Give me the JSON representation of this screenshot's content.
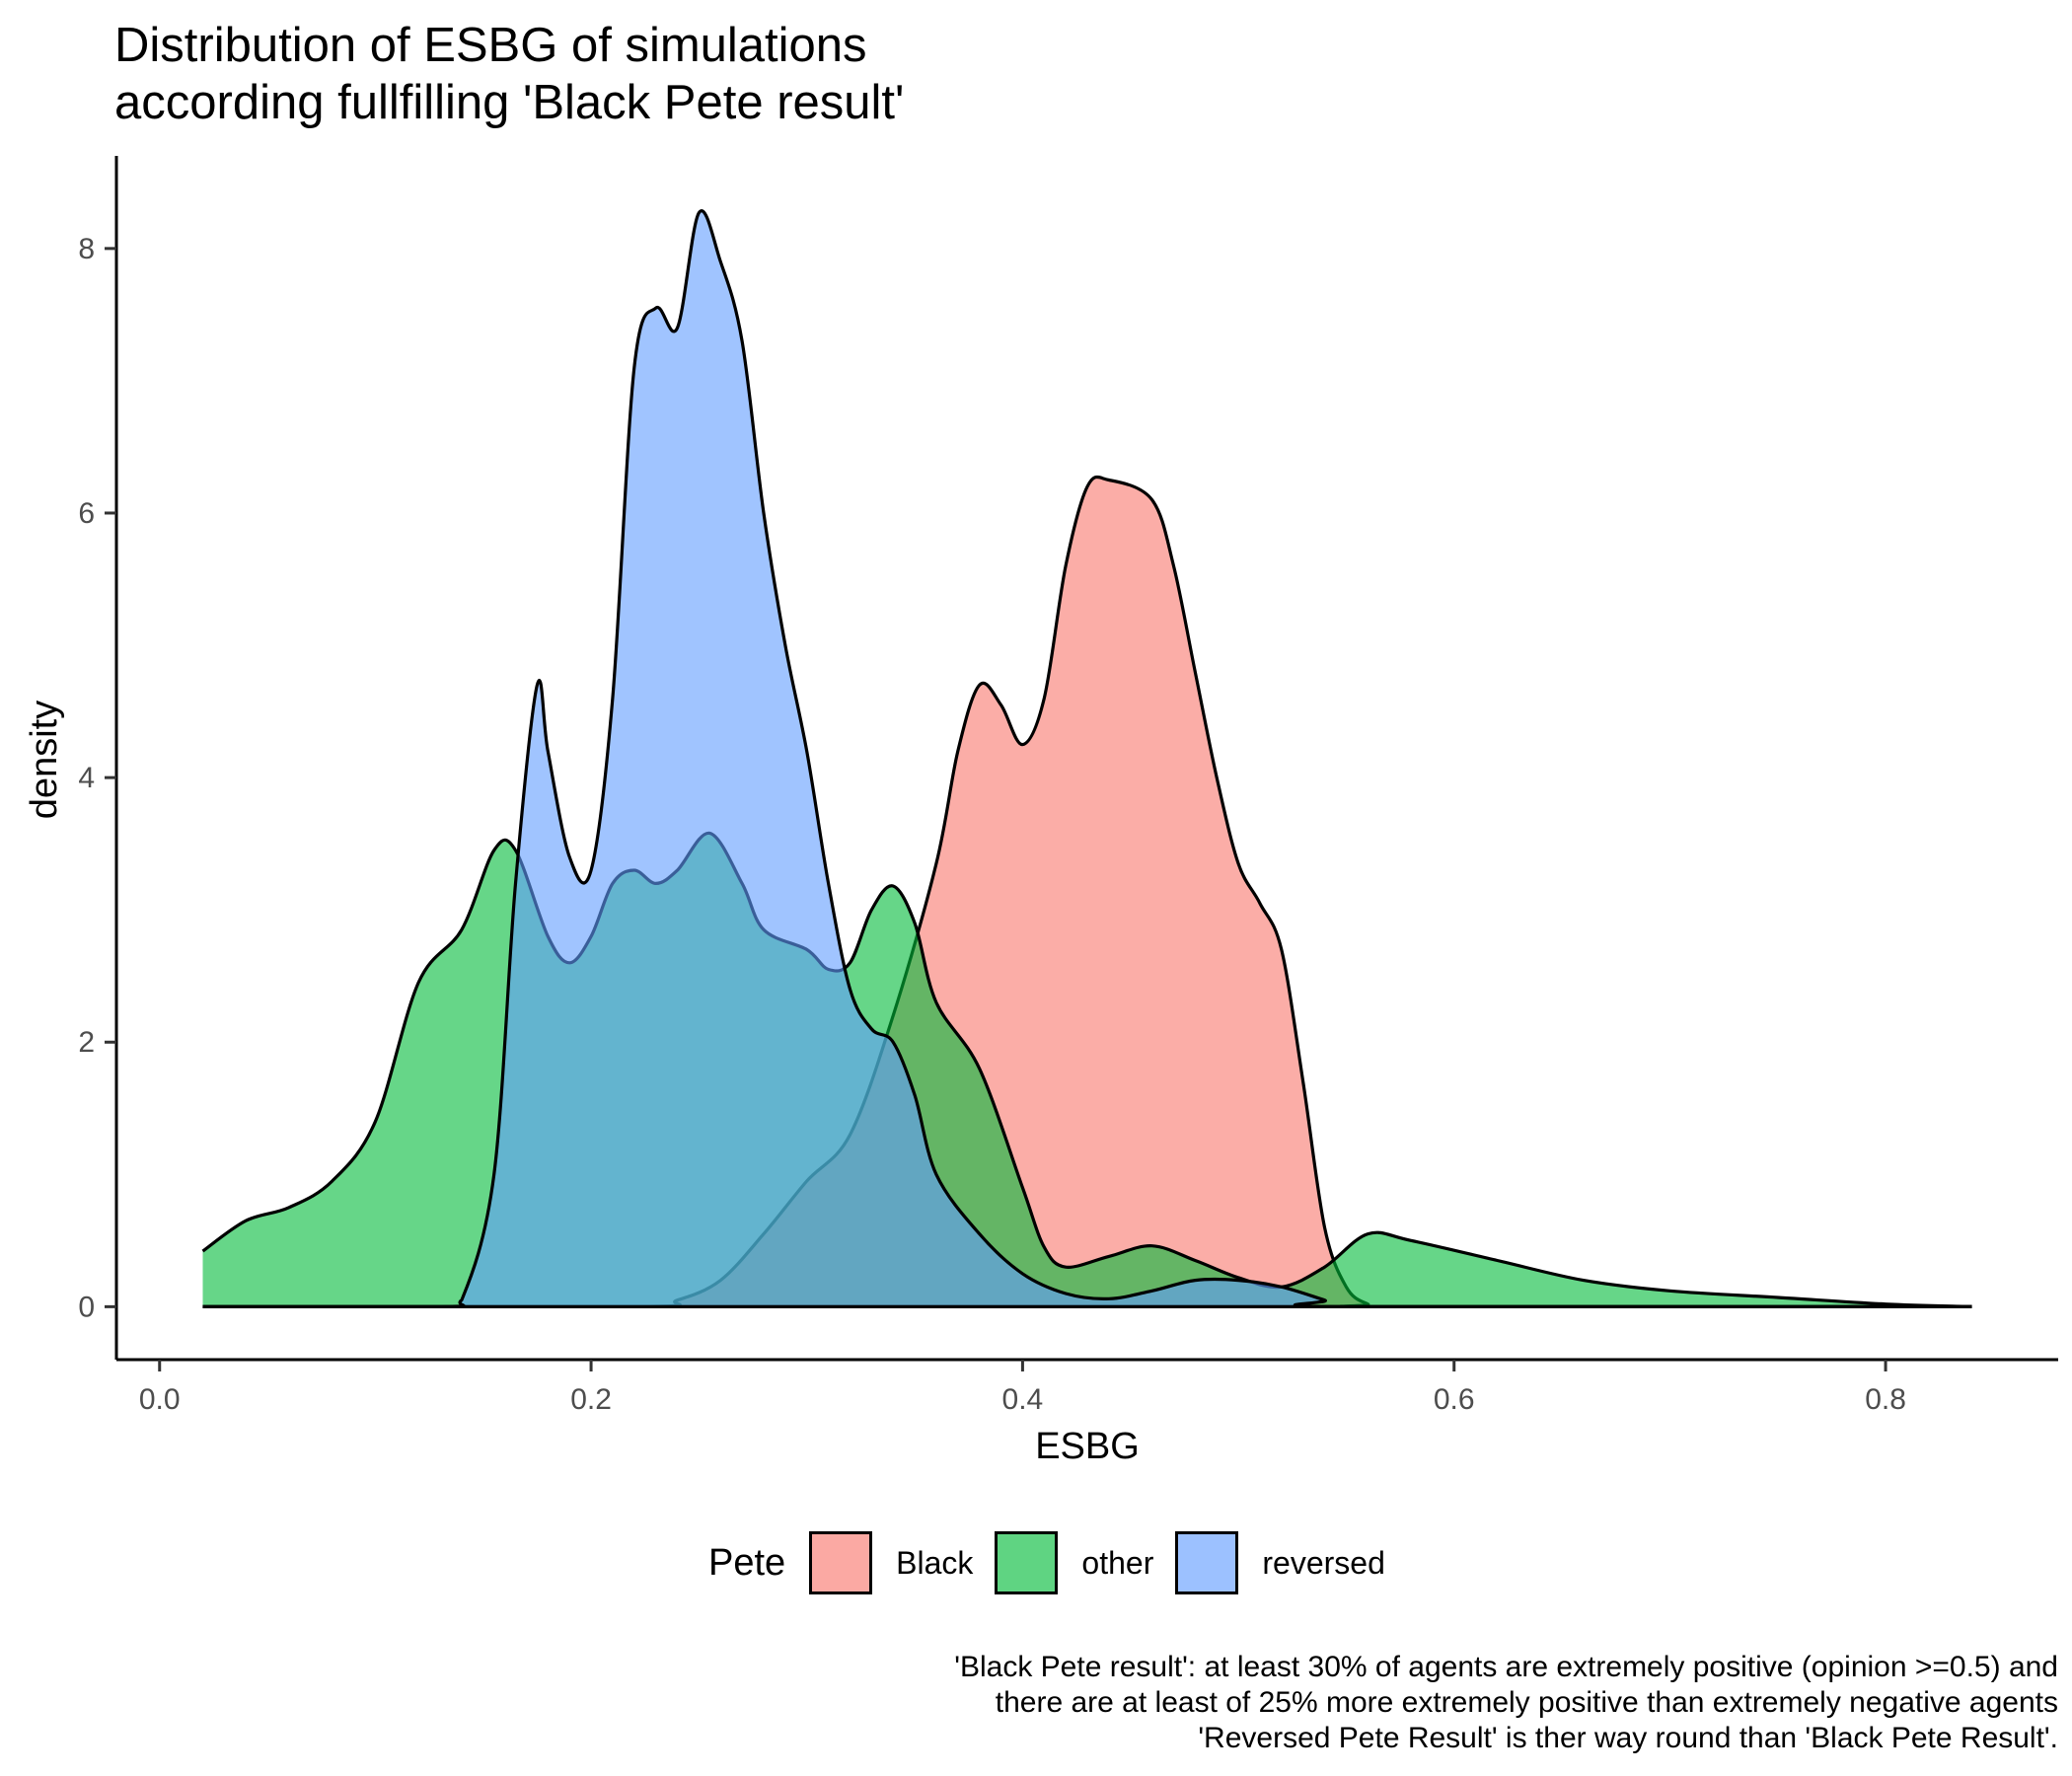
{
  "chart_data": {
    "type": "area",
    "title_lines": [
      "Distribution of ESBG of simulations",
      "according fullfilling 'Black Pete result'"
    ],
    "xlabel": "ESBG",
    "ylabel": "density",
    "xlim": [
      -0.02,
      0.88
    ],
    "ylim": [
      -0.4,
      8.7
    ],
    "x_ticks": [
      0.0,
      0.2,
      0.4,
      0.6,
      0.8
    ],
    "x_tick_labels": [
      "0.0",
      "0.2",
      "0.4",
      "0.6",
      "0.8"
    ],
    "y_ticks": [
      0,
      2,
      4,
      6,
      8
    ],
    "y_tick_labels": [
      "0",
      "2",
      "4",
      "6",
      "8"
    ],
    "grid": false,
    "legend": {
      "title": "Pete",
      "position": "bottom"
    },
    "series": [
      {
        "name": "Black",
        "color": "#F8766D",
        "points": [
          [
            0.02,
            0
          ],
          [
            0.22,
            0
          ],
          [
            0.24,
            0.05
          ],
          [
            0.26,
            0.2
          ],
          [
            0.28,
            0.55
          ],
          [
            0.3,
            0.95
          ],
          [
            0.32,
            1.3
          ],
          [
            0.34,
            2.2
          ],
          [
            0.36,
            3.35
          ],
          [
            0.37,
            4.2
          ],
          [
            0.38,
            4.7
          ],
          [
            0.39,
            4.55
          ],
          [
            0.4,
            4.25
          ],
          [
            0.41,
            4.6
          ],
          [
            0.42,
            5.6
          ],
          [
            0.43,
            6.2
          ],
          [
            0.44,
            6.25
          ],
          [
            0.46,
            6.1
          ],
          [
            0.47,
            5.6
          ],
          [
            0.48,
            4.8
          ],
          [
            0.49,
            4.0
          ],
          [
            0.5,
            3.35
          ],
          [
            0.51,
            3.05
          ],
          [
            0.52,
            2.7
          ],
          [
            0.53,
            1.7
          ],
          [
            0.54,
            0.6
          ],
          [
            0.55,
            0.15
          ],
          [
            0.56,
            0.02
          ],
          [
            0.57,
            0
          ],
          [
            0.84,
            0
          ]
        ]
      },
      {
        "name": "other",
        "color": "#00BA38",
        "points": [
          [
            0.02,
            0.42
          ],
          [
            0.04,
            0.65
          ],
          [
            0.06,
            0.75
          ],
          [
            0.08,
            0.95
          ],
          [
            0.1,
            1.4
          ],
          [
            0.12,
            2.45
          ],
          [
            0.14,
            2.85
          ],
          [
            0.155,
            3.45
          ],
          [
            0.165,
            3.45
          ],
          [
            0.18,
            2.8
          ],
          [
            0.19,
            2.6
          ],
          [
            0.2,
            2.8
          ],
          [
            0.21,
            3.2
          ],
          [
            0.22,
            3.3
          ],
          [
            0.23,
            3.2
          ],
          [
            0.24,
            3.3
          ],
          [
            0.255,
            3.58
          ],
          [
            0.27,
            3.2
          ],
          [
            0.28,
            2.85
          ],
          [
            0.3,
            2.7
          ],
          [
            0.31,
            2.55
          ],
          [
            0.32,
            2.6
          ],
          [
            0.33,
            3.0
          ],
          [
            0.34,
            3.18
          ],
          [
            0.35,
            2.9
          ],
          [
            0.36,
            2.3
          ],
          [
            0.38,
            1.8
          ],
          [
            0.4,
            0.9
          ],
          [
            0.41,
            0.45
          ],
          [
            0.42,
            0.3
          ],
          [
            0.44,
            0.38
          ],
          [
            0.46,
            0.46
          ],
          [
            0.48,
            0.35
          ],
          [
            0.5,
            0.22
          ],
          [
            0.52,
            0.15
          ],
          [
            0.54,
            0.3
          ],
          [
            0.56,
            0.55
          ],
          [
            0.58,
            0.5
          ],
          [
            0.62,
            0.35
          ],
          [
            0.66,
            0.2
          ],
          [
            0.7,
            0.12
          ],
          [
            0.75,
            0.07
          ],
          [
            0.8,
            0.02
          ],
          [
            0.84,
            0
          ]
        ]
      },
      {
        "name": "reversed",
        "color": "#619CFF",
        "points": [
          [
            0.02,
            0
          ],
          [
            0.13,
            0
          ],
          [
            0.14,
            0.05
          ],
          [
            0.155,
            1.0
          ],
          [
            0.165,
            3.2
          ],
          [
            0.175,
            4.7
          ],
          [
            0.18,
            4.2
          ],
          [
            0.19,
            3.4
          ],
          [
            0.2,
            3.3
          ],
          [
            0.21,
            4.6
          ],
          [
            0.22,
            7.1
          ],
          [
            0.23,
            7.55
          ],
          [
            0.24,
            7.4
          ],
          [
            0.25,
            8.27
          ],
          [
            0.26,
            7.9
          ],
          [
            0.27,
            7.3
          ],
          [
            0.28,
            6.0
          ],
          [
            0.29,
            5.0
          ],
          [
            0.3,
            4.2
          ],
          [
            0.31,
            3.2
          ],
          [
            0.32,
            2.4
          ],
          [
            0.33,
            2.1
          ],
          [
            0.34,
            2.0
          ],
          [
            0.35,
            1.6
          ],
          [
            0.36,
            1.0
          ],
          [
            0.38,
            0.55
          ],
          [
            0.4,
            0.25
          ],
          [
            0.42,
            0.1
          ],
          [
            0.44,
            0.06
          ],
          [
            0.46,
            0.12
          ],
          [
            0.48,
            0.2
          ],
          [
            0.5,
            0.2
          ],
          [
            0.52,
            0.15
          ],
          [
            0.54,
            0.05
          ],
          [
            0.55,
            0
          ],
          [
            0.84,
            0
          ]
        ]
      }
    ],
    "caption_lines": [
      "'Black Pete result': at least 30% of agents are extremely positive (opinion >=0.5) and",
      "there are at least of 25% more extremely positive than extremely negative agents",
      "'Reversed Pete Result' is ther way round than 'Black Pete Result'."
    ]
  }
}
